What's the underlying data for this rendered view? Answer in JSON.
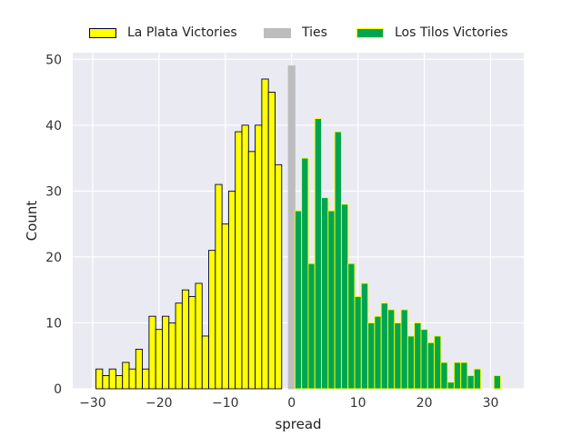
{
  "chart_data": {
    "type": "bar",
    "title": "",
    "xlabel": "spread",
    "ylabel": "Count",
    "xlim": [
      -33,
      35
    ],
    "ylim": [
      0,
      51
    ],
    "xticks": [
      -30,
      -20,
      -10,
      0,
      10,
      20,
      30
    ],
    "yticks": [
      0,
      10,
      20,
      30,
      40,
      50
    ],
    "grid": true,
    "legend_position": "top-center",
    "series": [
      {
        "name": "La Plata Victories",
        "color": "#ffff00",
        "edge": "#000033",
        "x": [
          -29,
          -28,
          -27,
          -26,
          -25,
          -24,
          -23,
          -22,
          -21,
          -20,
          -19,
          -18,
          -17,
          -16,
          -15,
          -14,
          -13,
          -12,
          -11,
          -10,
          -9,
          -8,
          -7,
          -6,
          -5,
          -4,
          -3,
          -2,
          -1
        ],
        "values": [
          3,
          2,
          3,
          2,
          4,
          3,
          6,
          3,
          11,
          9,
          11,
          10,
          13,
          15,
          14,
          16,
          8,
          21,
          31,
          25,
          30,
          39,
          40,
          36,
          40,
          47,
          45,
          34,
          0
        ]
      },
      {
        "name": "Ties",
        "color": "#bdbdbd",
        "edge": "#bdbdbd",
        "x": [
          0
        ],
        "values": [
          49
        ]
      },
      {
        "name": "Los Tilos Victories",
        "color": "#00a550",
        "edge": "#ffff00",
        "x": [
          1,
          2,
          3,
          4,
          5,
          6,
          7,
          8,
          9,
          10,
          11,
          12,
          13,
          14,
          15,
          16,
          17,
          18,
          19,
          20,
          21,
          22,
          23,
          24,
          25,
          26,
          27,
          28,
          29,
          30,
          31
        ],
        "values": [
          27,
          35,
          19,
          41,
          29,
          27,
          39,
          28,
          19,
          14,
          16,
          10,
          11,
          13,
          12,
          10,
          12,
          8,
          10,
          9,
          7,
          8,
          4,
          1,
          4,
          4,
          2,
          3,
          0,
          0,
          2
        ]
      }
    ]
  },
  "legend": {
    "items": [
      {
        "label": "La Plata Victories",
        "color": "#ffff00",
        "edge": "#000033"
      },
      {
        "label": "Ties",
        "color": "#bdbdbd",
        "edge": "#bdbdbd"
      },
      {
        "label": "Los Tilos Victories",
        "color": "#00a550",
        "edge": "#ffff00"
      }
    ]
  }
}
